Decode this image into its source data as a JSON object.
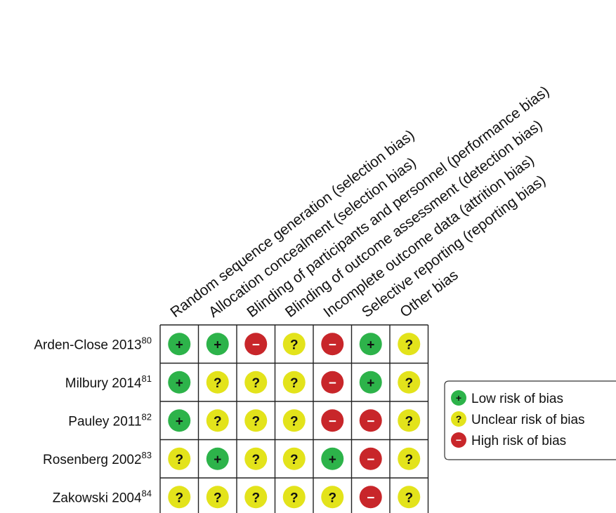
{
  "domains": [
    "Random sequence generation (selection bias)",
    "Allocation concealment (selection bias)",
    "Blinding of participants and personnel (performance bias)",
    "Blinding of outcome assessment (detection bias)",
    "Incomplete outcome data (attrition bias)",
    "Selective reporting (reporting bias)",
    "Other bias"
  ],
  "studies": [
    {
      "name": "Arden-Close 2013",
      "ref": "80",
      "ratings": [
        "low",
        "low",
        "high",
        "unclear",
        "high",
        "low",
        "unclear"
      ]
    },
    {
      "name": "Milbury 2014",
      "ref": "81",
      "ratings": [
        "low",
        "unclear",
        "unclear",
        "unclear",
        "high",
        "low",
        "unclear"
      ]
    },
    {
      "name": "Pauley 2011",
      "ref": "82",
      "ratings": [
        "low",
        "unclear",
        "unclear",
        "unclear",
        "high",
        "high",
        "unclear"
      ]
    },
    {
      "name": "Rosenberg 2002",
      "ref": "83",
      "ratings": [
        "unclear",
        "low",
        "unclear",
        "unclear",
        "low",
        "high",
        "unclear"
      ]
    },
    {
      "name": "Zakowski 2004",
      "ref": "84",
      "ratings": [
        "unclear",
        "unclear",
        "unclear",
        "unclear",
        "unclear",
        "high",
        "unclear"
      ]
    }
  ],
  "symbols": {
    "low": "+",
    "unclear": "?",
    "high": "−"
  },
  "colors": {
    "low": "#2db34a",
    "unclear": "#e3e31b",
    "high": "#c8262a"
  },
  "legend": [
    {
      "key": "low",
      "label": "Low risk of bias"
    },
    {
      "key": "unclear",
      "label": "Unclear risk of bias"
    },
    {
      "key": "high",
      "label": "High risk of bias"
    }
  ]
}
